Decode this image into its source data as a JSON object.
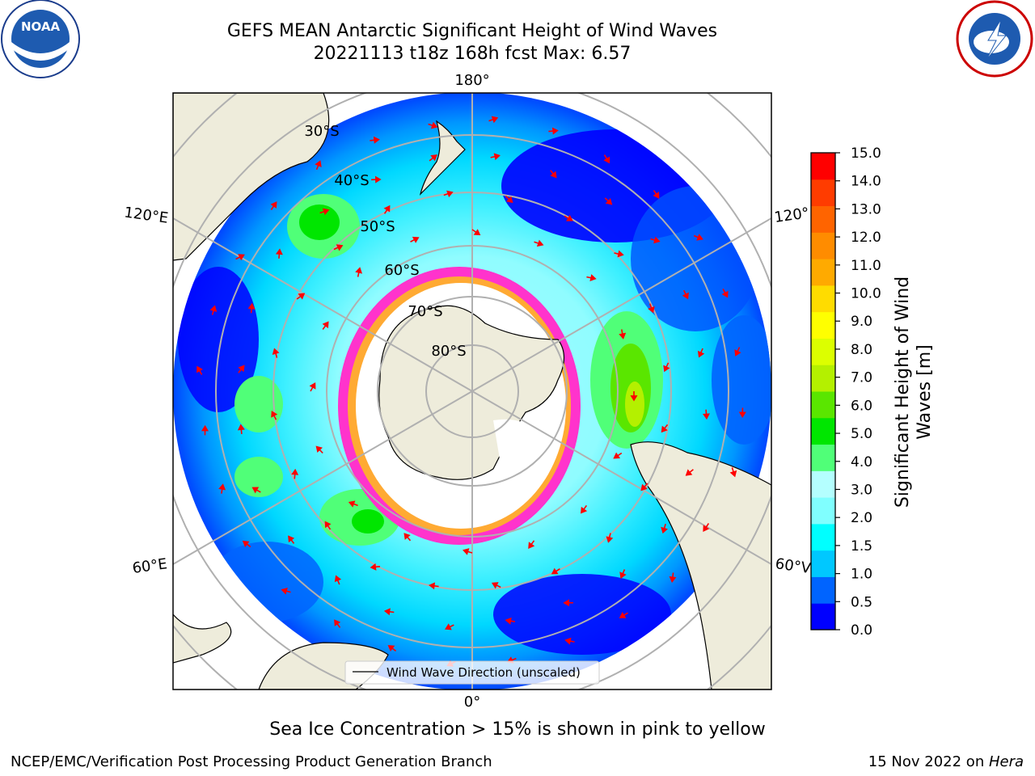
{
  "header": {
    "title_line1": "GEFS MEAN Antarctic Significant Height of Wind Waves",
    "title_line2": "20221113 t18z 168h fcst   Max: 6.57"
  },
  "logos": {
    "left": {
      "icon": "noaa-logo",
      "text": "NOAA"
    },
    "right": {
      "icon": "national-weather-service-logo",
      "text": "NATIONAL WEATHER SERVICE"
    }
  },
  "map": {
    "projection": "south-polar-stereographic",
    "longitude_labels": {
      "top": "180°",
      "bottom": "0°",
      "upper_left": "120°E",
      "upper_right": "120°",
      "lower_left": "60°E",
      "lower_right": "60°V"
    },
    "latitude_labels": [
      "30°S",
      "40°S",
      "50°S",
      "60°S",
      "70°S",
      "80°S"
    ],
    "legend_label": "Wind Wave Direction (unscaled)",
    "colors": {
      "land": "#eeecdb",
      "ice_edge": "#ff33cc",
      "arrow": "#ff0000",
      "grid": "#b0b0b0"
    }
  },
  "colorbar": {
    "title": "Significant Height of Wind Waves [m]",
    "ticks": [
      "0.0",
      "0.5",
      "1.0",
      "1.5",
      "2.0",
      "3.0",
      "4.0",
      "5.0",
      "6.0",
      "7.0",
      "8.0",
      "9.0",
      "10.0",
      "11.0",
      "12.0",
      "13.0",
      "14.0",
      "15.0"
    ],
    "colors": [
      "#0000ff",
      "#0064ff",
      "#00c8ff",
      "#00ffff",
      "#80ffff",
      "#b4ffff",
      "#50ff78",
      "#00e600",
      "#5ae600",
      "#b4f000",
      "#dcff00",
      "#ffff00",
      "#ffdc00",
      "#ffaa00",
      "#ff8c00",
      "#ff6400",
      "#ff3c00",
      "#ff0000"
    ]
  },
  "caption": "Sea Ice Concentration > 15% is shown in pink to yellow",
  "footer": {
    "left": "NCEP/EMC/Verification Post Processing Product Generation Branch",
    "right_date": "15 Nov 2022 on ",
    "right_machine": "Hera"
  }
}
